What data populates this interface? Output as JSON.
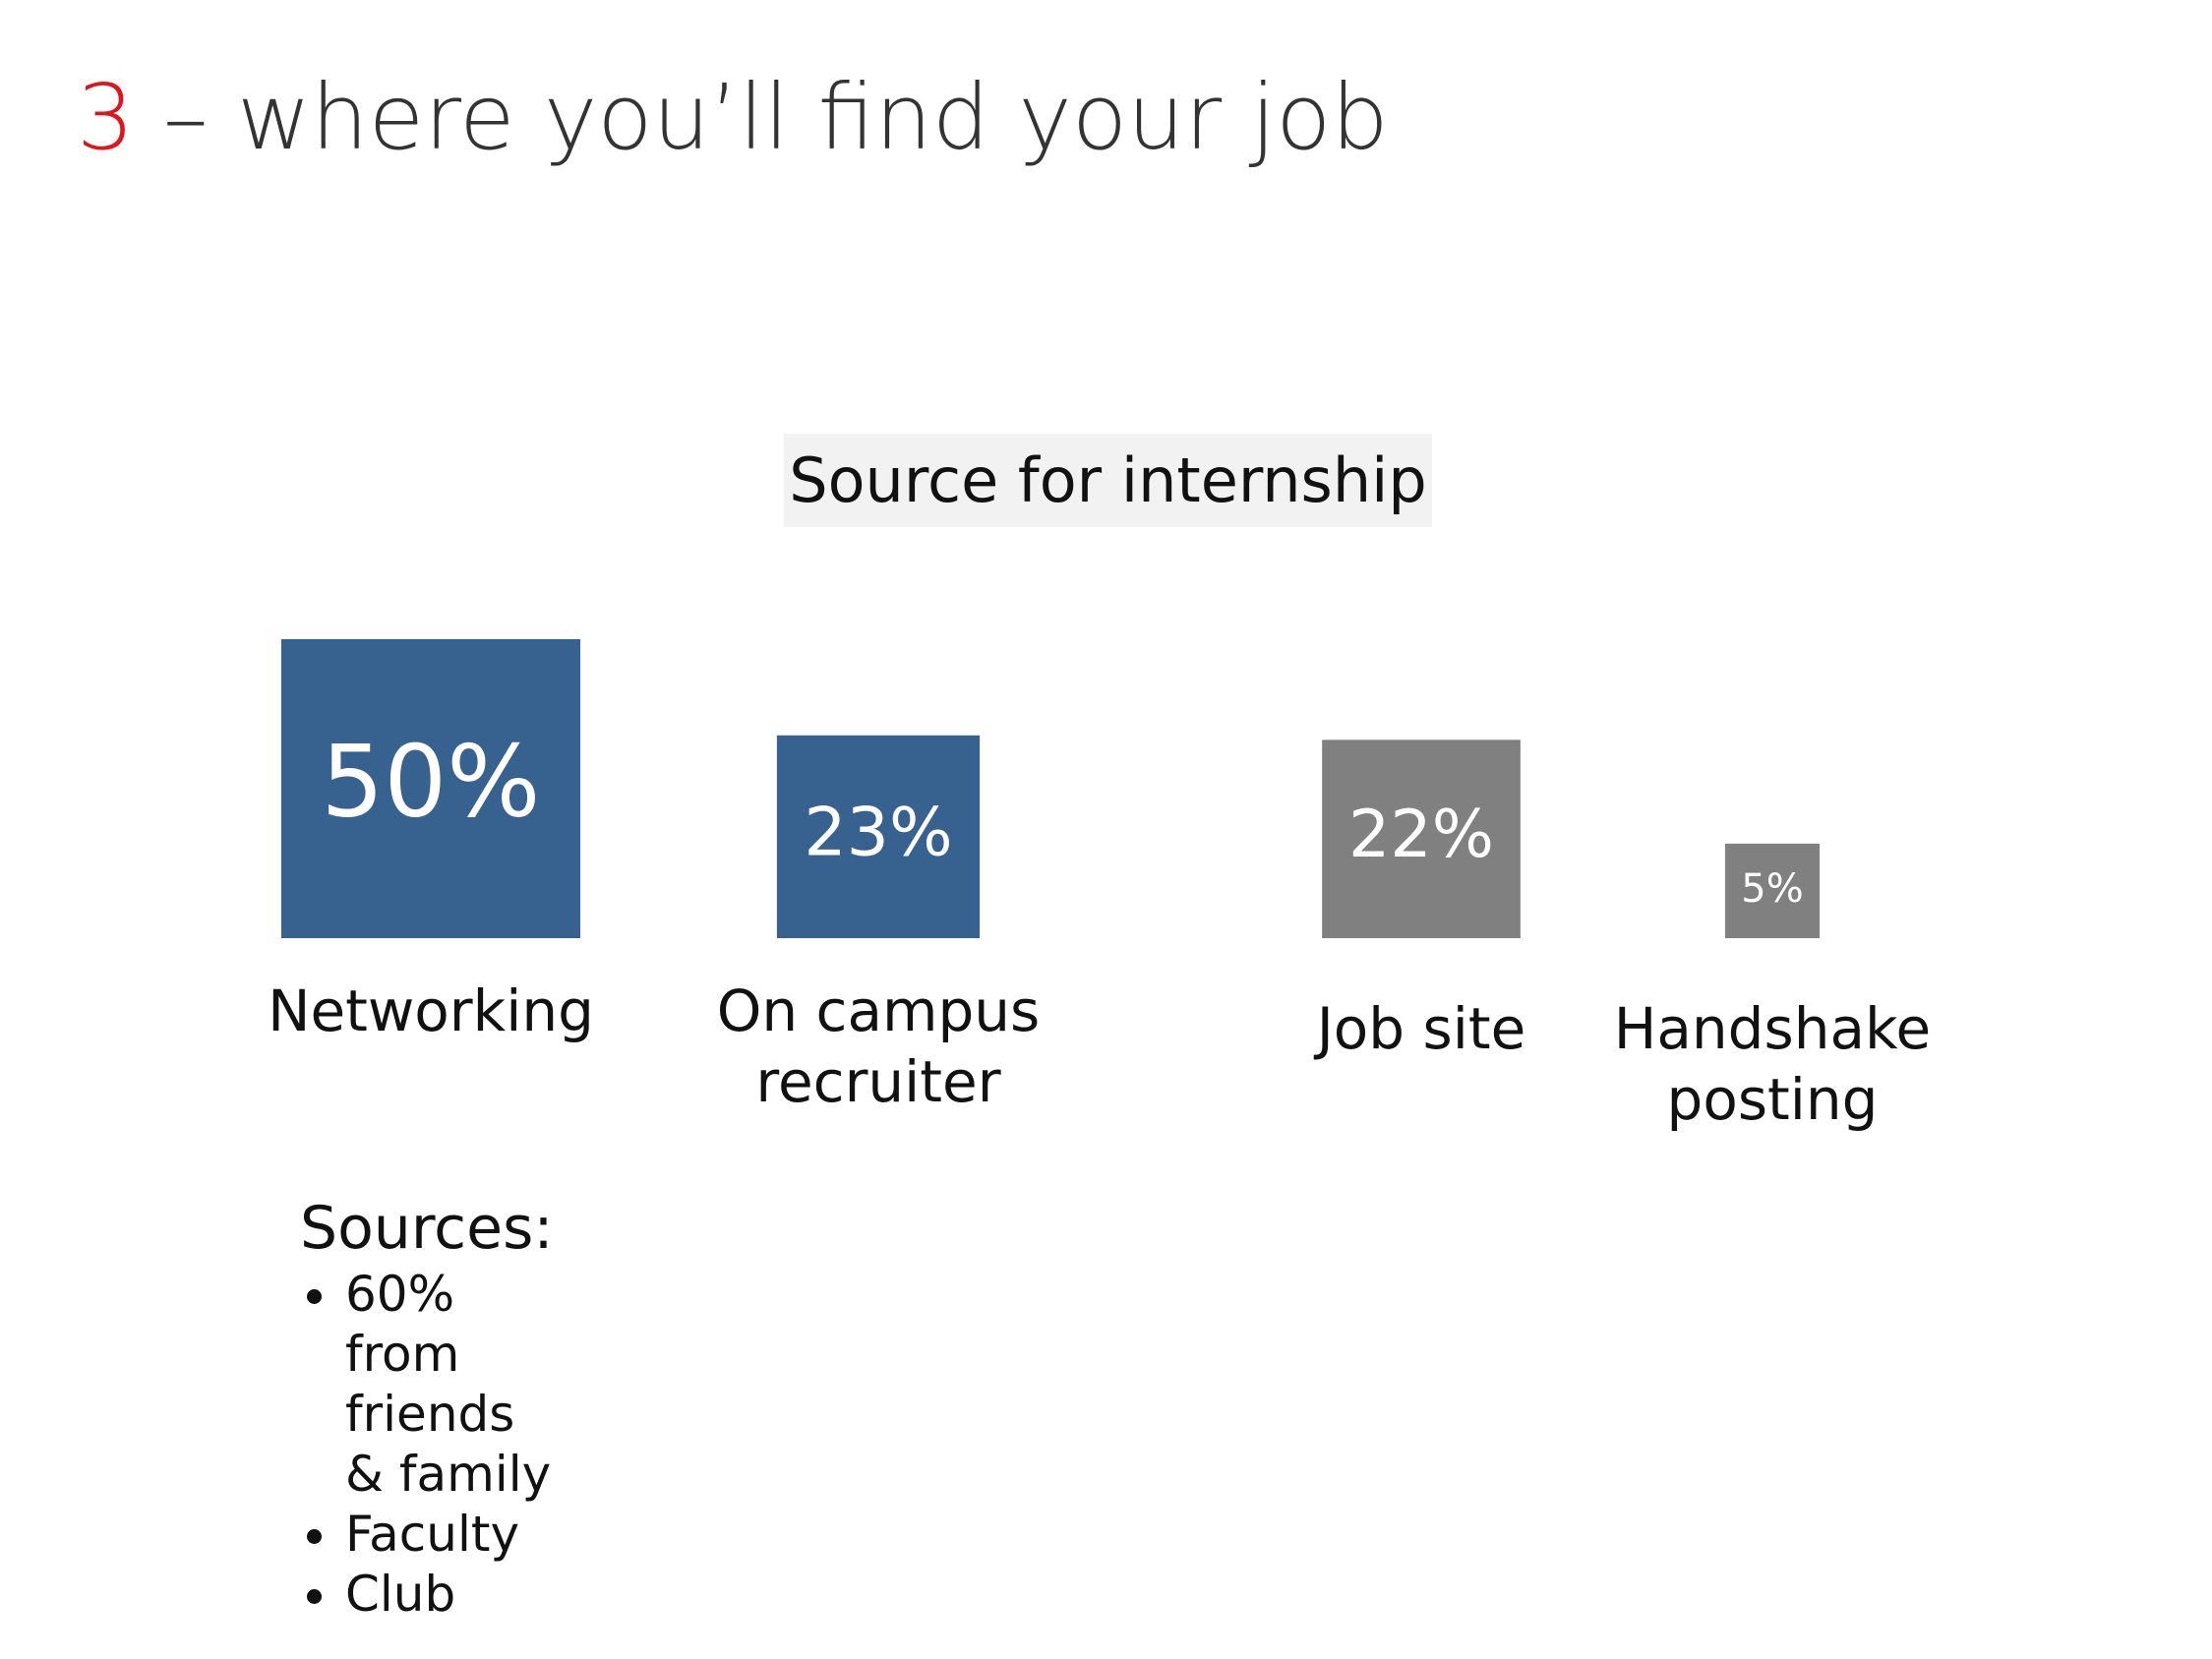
{
  "slide": {
    "number": "3",
    "title": "– where you’ll find your job"
  },
  "chart_data": {
    "type": "square",
    "title": "Source for internship",
    "categories": [
      "Networking",
      "On campus recruiter",
      "Job site",
      "Handshake posting"
    ],
    "values": [
      50,
      23,
      22,
      5
    ],
    "value_labels": [
      "50%",
      "23%",
      "22%",
      "5%"
    ],
    "colors": [
      "#37618f",
      "#37618f",
      "#808080",
      "#808080"
    ]
  },
  "sources": {
    "heading": "Sources:",
    "items": [
      "60% from friends & family",
      "Faculty",
      "Club"
    ]
  }
}
